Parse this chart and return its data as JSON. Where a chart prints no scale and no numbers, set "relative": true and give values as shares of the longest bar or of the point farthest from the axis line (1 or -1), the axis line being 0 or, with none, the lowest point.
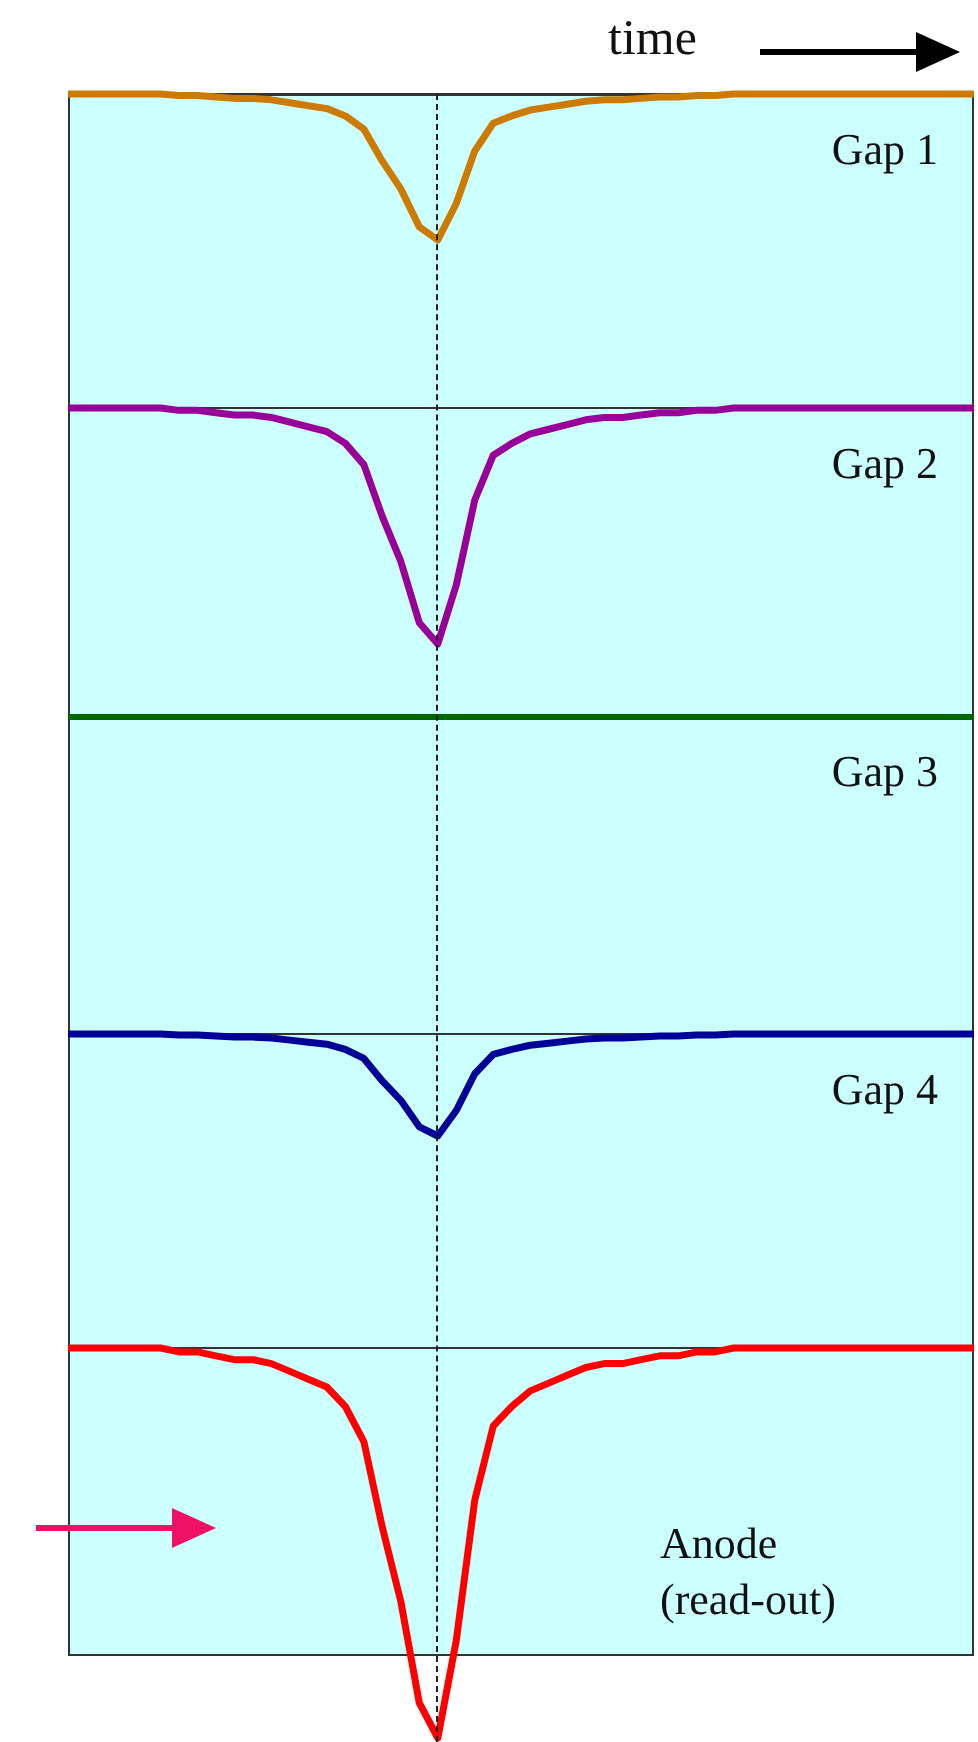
{
  "chart_data": [
    {
      "type": "line",
      "relative": true,
      "tick_labels": false,
      "xlabel": "time",
      "annotations": [
        "Gap 1"
      ],
      "categories": [
        null,
        null,
        null,
        null,
        null,
        null,
        null,
        null,
        null,
        null,
        null,
        null,
        null,
        null,
        null,
        null,
        null,
        null,
        null,
        null,
        null,
        null,
        null,
        null,
        null,
        null,
        null,
        null,
        null,
        null,
        null,
        null,
        null,
        null,
        null,
        null,
        null,
        null,
        null,
        null,
        null,
        null,
        null,
        null,
        null,
        null,
        null,
        null,
        null,
        null
      ],
      "series": [
        {
          "color": "#cc7a00",
          "values": [
            0,
            0,
            0,
            0,
            0,
            0,
            -0.01,
            -0.01,
            -0.02,
            -0.03,
            -0.03,
            -0.04,
            -0.06,
            -0.08,
            -0.1,
            -0.15,
            -0.24,
            -0.46,
            -0.65,
            -0.91,
            -1,
            -0.75,
            -0.39,
            -0.2,
            -0.15,
            -0.11,
            -0.09,
            -0.07,
            -0.05,
            -0.04,
            -0.04,
            -0.03,
            -0.02,
            -0.02,
            -0.01,
            -0.01,
            0,
            0,
            0,
            0,
            0,
            0,
            0,
            0,
            0,
            0,
            0,
            0,
            0,
            0
          ]
        }
      ]
    },
    {
      "type": "line",
      "relative": true,
      "tick_labels": false,
      "annotations": [
        "Gap 2"
      ],
      "categories": [
        null,
        null,
        null,
        null,
        null,
        null,
        null,
        null,
        null,
        null,
        null,
        null,
        null,
        null,
        null,
        null,
        null,
        null,
        null,
        null,
        null,
        null,
        null,
        null,
        null,
        null,
        null,
        null,
        null,
        null,
        null,
        null,
        null,
        null,
        null,
        null,
        null,
        null,
        null,
        null,
        null,
        null,
        null,
        null,
        null,
        null,
        null,
        null,
        null,
        null
      ],
      "series": [
        {
          "color": "#990099",
          "values": [
            0,
            0,
            0,
            0,
            0,
            0,
            -0.01,
            -0.01,
            -0.02,
            -0.03,
            -0.03,
            -0.04,
            -0.06,
            -0.08,
            -0.1,
            -0.15,
            -0.24,
            -0.46,
            -0.65,
            -0.91,
            -1,
            -0.75,
            -0.39,
            -0.2,
            -0.15,
            -0.11,
            -0.09,
            -0.07,
            -0.05,
            -0.04,
            -0.04,
            -0.03,
            -0.02,
            -0.02,
            -0.01,
            -0.01,
            0,
            0,
            0,
            0,
            0,
            0,
            0,
            0,
            0,
            0,
            0,
            0,
            0,
            0
          ]
        }
      ]
    },
    {
      "type": "other",
      "annotations": [
        "Gap 3"
      ]
    },
    {
      "type": "line",
      "relative": true,
      "tick_labels": false,
      "annotations": [
        "Gap 4"
      ],
      "categories": [
        null,
        null,
        null,
        null,
        null,
        null,
        null,
        null,
        null,
        null,
        null,
        null,
        null,
        null,
        null,
        null,
        null,
        null,
        null,
        null,
        null,
        null,
        null,
        null,
        null,
        null,
        null,
        null,
        null,
        null,
        null,
        null,
        null,
        null,
        null,
        null,
        null,
        null,
        null,
        null,
        null,
        null,
        null,
        null,
        null,
        null,
        null,
        null,
        null,
        null
      ],
      "series": [
        {
          "color": "#000099",
          "values": [
            0,
            0,
            0,
            0,
            0,
            0,
            -0.01,
            -0.01,
            -0.02,
            -0.03,
            -0.03,
            -0.04,
            -0.06,
            -0.08,
            -0.1,
            -0.15,
            -0.24,
            -0.46,
            -0.65,
            -0.91,
            -1,
            -0.75,
            -0.39,
            -0.2,
            -0.15,
            -0.11,
            -0.09,
            -0.07,
            -0.05,
            -0.04,
            -0.04,
            -0.03,
            -0.02,
            -0.02,
            -0.01,
            -0.01,
            0,
            0,
            0,
            0,
            0,
            0,
            0,
            0,
            0,
            0,
            0,
            0,
            0,
            0
          ]
        }
      ]
    },
    {
      "type": "line",
      "relative": true,
      "tick_labels": false,
      "annotations": [
        "Anode",
        "(read-out)"
      ],
      "categories": [
        null,
        null,
        null,
        null,
        null,
        null,
        null,
        null,
        null,
        null,
        null,
        null,
        null,
        null,
        null,
        null,
        null,
        null,
        null,
        null,
        null,
        null,
        null,
        null,
        null,
        null,
        null,
        null,
        null,
        null,
        null,
        null,
        null,
        null,
        null,
        null,
        null,
        null,
        null,
        null,
        null,
        null,
        null,
        null,
        null,
        null,
        null,
        null,
        null,
        null
      ],
      "series": [
        {
          "color": "#ff0000",
          "values": [
            0,
            0,
            0,
            0,
            0,
            0,
            -0.01,
            -0.01,
            -0.02,
            -0.03,
            -0.03,
            -0.04,
            -0.06,
            -0.08,
            -0.1,
            -0.15,
            -0.24,
            -0.46,
            -0.65,
            -0.91,
            -1,
            -0.75,
            -0.39,
            -0.2,
            -0.15,
            -0.11,
            -0.09,
            -0.07,
            -0.05,
            -0.04,
            -0.04,
            -0.03,
            -0.02,
            -0.02,
            -0.01,
            -0.01,
            0,
            0,
            0,
            0,
            0,
            0,
            0,
            0,
            0,
            0,
            0,
            0,
            0,
            0
          ]
        }
      ]
    }
  ]
}
